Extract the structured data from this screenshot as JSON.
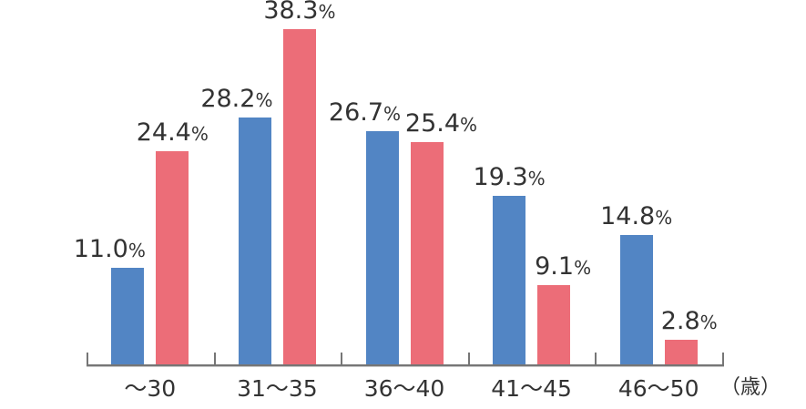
{
  "chart_data": {
    "type": "bar",
    "categories": [
      "〜30",
      "31〜35",
      "36〜40",
      "41〜45",
      "46〜50"
    ],
    "x_axis_unit": "（歳）",
    "value_suffix": "%",
    "series": [
      {
        "name": "blue",
        "color": "#5285C4",
        "values": [
          11.0,
          28.2,
          26.7,
          19.3,
          14.8
        ],
        "display": [
          "11.0",
          "28.2",
          "26.7",
          "19.3",
          "14.8"
        ]
      },
      {
        "name": "red",
        "color": "#EC6D78",
        "values": [
          24.4,
          38.3,
          25.4,
          9.1,
          2.8
        ],
        "display": [
          "24.4",
          "38.3",
          "25.4",
          "9.1",
          "2.8"
        ]
      }
    ],
    "title": "",
    "xlabel": "",
    "ylabel": "",
    "ylim": [
      0,
      40
    ],
    "grid": false,
    "legend_position": "none",
    "axis_color": "#767676",
    "text_color": "#333333",
    "label_dx": {
      "blue": [
        -20,
        -20,
        -19,
        0,
        0
      ],
      "red": [
        0,
        0,
        16,
        10,
        9
      ]
    }
  }
}
